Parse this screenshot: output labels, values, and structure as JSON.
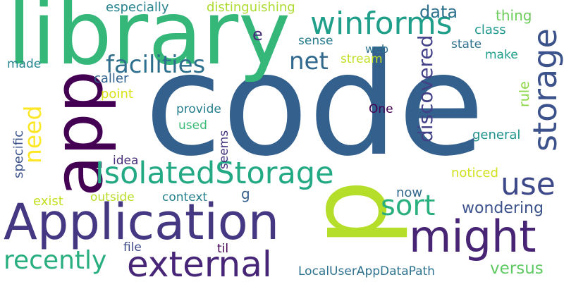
{
  "words": [
    {
      "text": "code",
      "color": "#33608c"
    },
    {
      "text": "library",
      "color": "#35b779"
    },
    {
      "text": "app",
      "color": "#440154"
    },
    {
      "text": "p",
      "color": "#b5de2b"
    },
    {
      "text": "Application",
      "color": "#453781"
    },
    {
      "text": "IsolatedStorage",
      "color": "#23a983"
    },
    {
      "text": "winforms",
      "color": "#1f9e89"
    },
    {
      "text": "might",
      "color": "#482475"
    },
    {
      "text": "external",
      "color": "#482677"
    },
    {
      "text": "storage",
      "color": "#3b528b"
    },
    {
      "text": "facilities",
      "color": "#2e6f8e"
    },
    {
      "text": "recently",
      "color": "#29af7f"
    },
    {
      "text": "use",
      "color": "#3e4989"
    },
    {
      "text": "sort",
      "color": "#2ab07f"
    },
    {
      "text": "discovered",
      "color": "#424086"
    },
    {
      "text": "need",
      "color": "#fde725"
    },
    {
      "text": "net",
      "color": "#31688e"
    },
    {
      "text": "wondering",
      "color": "#3b528b"
    },
    {
      "text": "versus",
      "color": "#5ec962"
    },
    {
      "text": "data",
      "color": "#2c728e"
    },
    {
      "text": "especially",
      "color": "#26828e"
    },
    {
      "text": "distinguishing",
      "color": "#addc30"
    },
    {
      "text": "e",
      "color": "#472d7b"
    },
    {
      "text": "thing",
      "color": "#6ccd5a"
    },
    {
      "text": "class",
      "color": "#1f988b"
    },
    {
      "text": "sense",
      "color": "#287d8e"
    },
    {
      "text": "state",
      "color": "#2d708e"
    },
    {
      "text": "web",
      "color": "#2c728e"
    },
    {
      "text": "make",
      "color": "#1f9e89"
    },
    {
      "text": "stream",
      "color": "#c2df23"
    },
    {
      "text": "made",
      "color": "#25858e"
    },
    {
      "text": "caller",
      "color": "#33638d"
    },
    {
      "text": "point",
      "color": "#d8e219"
    },
    {
      "text": "rule",
      "color": "#8bd646"
    },
    {
      "text": "One",
      "color": "#440154"
    },
    {
      "text": "provide",
      "color": "#277f8e"
    },
    {
      "text": "used",
      "color": "#3bbb75"
    },
    {
      "text": "general",
      "color": "#20928c"
    },
    {
      "text": "specific",
      "color": "#3b528b"
    },
    {
      "text": "idea",
      "color": "#472f7d"
    },
    {
      "text": "seems",
      "color": "#46337f"
    },
    {
      "text": "noticed",
      "color": "#d0e11c"
    },
    {
      "text": "exist",
      "color": "#c5e021"
    },
    {
      "text": "outside",
      "color": "#b8de29"
    },
    {
      "text": "context",
      "color": "#26818e"
    },
    {
      "text": "g",
      "color": "#35608d"
    },
    {
      "text": "now",
      "color": "#31688e"
    },
    {
      "text": "file",
      "color": "#3e4a89"
    },
    {
      "text": "til",
      "color": "#440154"
    },
    {
      "text": "LocalUserAppDataPath",
      "color": "#2c728e"
    }
  ]
}
